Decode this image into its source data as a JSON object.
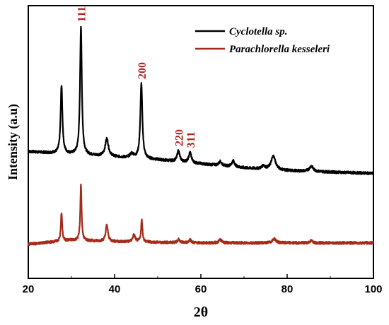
{
  "chart_data": {
    "type": "line",
    "title": "",
    "xlabel": "2θ",
    "ylabel": "Intensity (a.u)",
    "xlim": [
      20,
      100
    ],
    "ylim": [
      0,
      100
    ],
    "x_ticks": [
      20,
      40,
      60,
      80,
      100
    ],
    "grid": false,
    "legend_position": "top-right",
    "series": [
      {
        "name": "Cyclotella sp.",
        "color": "#000000",
        "baseline": [
          [
            20,
            46.5
          ],
          [
            30,
            45.5
          ],
          [
            40,
            44.5
          ],
          [
            50,
            43.5
          ],
          [
            60,
            42.0
          ],
          [
            70,
            40.5
          ],
          [
            80,
            39.5
          ],
          [
            90,
            39.0
          ],
          [
            100,
            38.5
          ]
        ],
        "peaks": [
          {
            "x": 27.7,
            "height": 25.0,
            "width": 0.25
          },
          {
            "x": 32.2,
            "height": 47.0,
            "width": 0.25
          },
          {
            "x": 38.2,
            "height": 6.5,
            "width": 0.45
          },
          {
            "x": 44.0,
            "height": 1.5,
            "width": 0.5
          },
          {
            "x": 46.2,
            "height": 27.5,
            "width": 0.28
          },
          {
            "x": 54.8,
            "height": 4.0,
            "width": 0.35
          },
          {
            "x": 57.5,
            "height": 3.8,
            "width": 0.35
          },
          {
            "x": 64.5,
            "height": 1.5,
            "width": 0.4
          },
          {
            "x": 67.5,
            "height": 2.2,
            "width": 0.4
          },
          {
            "x": 74.5,
            "height": 1.2,
            "width": 0.4
          },
          {
            "x": 76.8,
            "height": 5.0,
            "width": 0.6
          },
          {
            "x": 85.6,
            "height": 2.0,
            "width": 0.5
          }
        ]
      },
      {
        "name": "Parachlorella kesseleri",
        "color": "#a52a1a",
        "baseline": [
          [
            20,
            12.5
          ],
          [
            30,
            14.0
          ],
          [
            40,
            13.5
          ],
          [
            50,
            13.2
          ],
          [
            60,
            13.0
          ],
          [
            70,
            13.0
          ],
          [
            80,
            13.0
          ],
          [
            90,
            13.0
          ],
          [
            100,
            13.0
          ]
        ],
        "peaks": [
          {
            "x": 27.7,
            "height": 10.5,
            "width": 0.18
          },
          {
            "x": 32.2,
            "height": 20.5,
            "width": 0.18
          },
          {
            "x": 38.2,
            "height": 6.0,
            "width": 0.3
          },
          {
            "x": 44.5,
            "height": 2.5,
            "width": 0.35
          },
          {
            "x": 46.3,
            "height": 8.0,
            "width": 0.2
          },
          {
            "x": 54.8,
            "height": 1.2,
            "width": 0.3
          },
          {
            "x": 57.5,
            "height": 1.2,
            "width": 0.3
          },
          {
            "x": 64.5,
            "height": 1.2,
            "width": 0.4
          },
          {
            "x": 77.0,
            "height": 1.5,
            "width": 0.5
          },
          {
            "x": 85.6,
            "height": 0.8,
            "width": 0.4
          }
        ]
      }
    ],
    "annotations": [
      {
        "text": "111",
        "x": 32.2
      },
      {
        "text": "200",
        "x": 46.2
      },
      {
        "text": "220",
        "x": 54.8
      },
      {
        "text": "311",
        "x": 57.5
      }
    ]
  }
}
